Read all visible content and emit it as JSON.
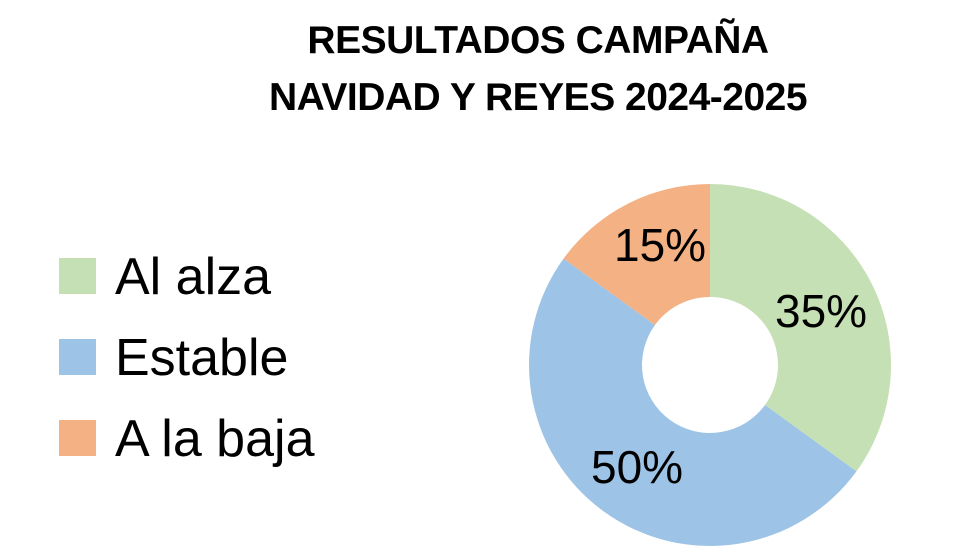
{
  "title": {
    "line1": "RESULTADOS CAMPAÑA",
    "line2": "NAVIDAD Y REYES 2024-2025"
  },
  "legend": [
    {
      "label": "Al alza",
      "color": "#C5E0B4"
    },
    {
      "label": "Estable",
      "color": "#9DC3E6"
    },
    {
      "label": "A la baja",
      "color": "#F4B183"
    }
  ],
  "labels": {
    "al_alza": "35%",
    "estable": "50%",
    "a_la_baja": "15%"
  },
  "chart_data": {
    "type": "pie",
    "subtype": "donut",
    "title": "RESULTADOS CAMPAÑA NAVIDAD Y REYES 2024-2025",
    "categories": [
      "Al alza",
      "Estable",
      "A la baja"
    ],
    "values": [
      35,
      50,
      15
    ],
    "unit": "%",
    "colors": [
      "#C5E0B4",
      "#9DC3E6",
      "#F4B183"
    ],
    "start_angle_deg": 0,
    "direction": "clockwise",
    "legend_position": "left",
    "data_labels": [
      "35%",
      "50%",
      "15%"
    ]
  }
}
